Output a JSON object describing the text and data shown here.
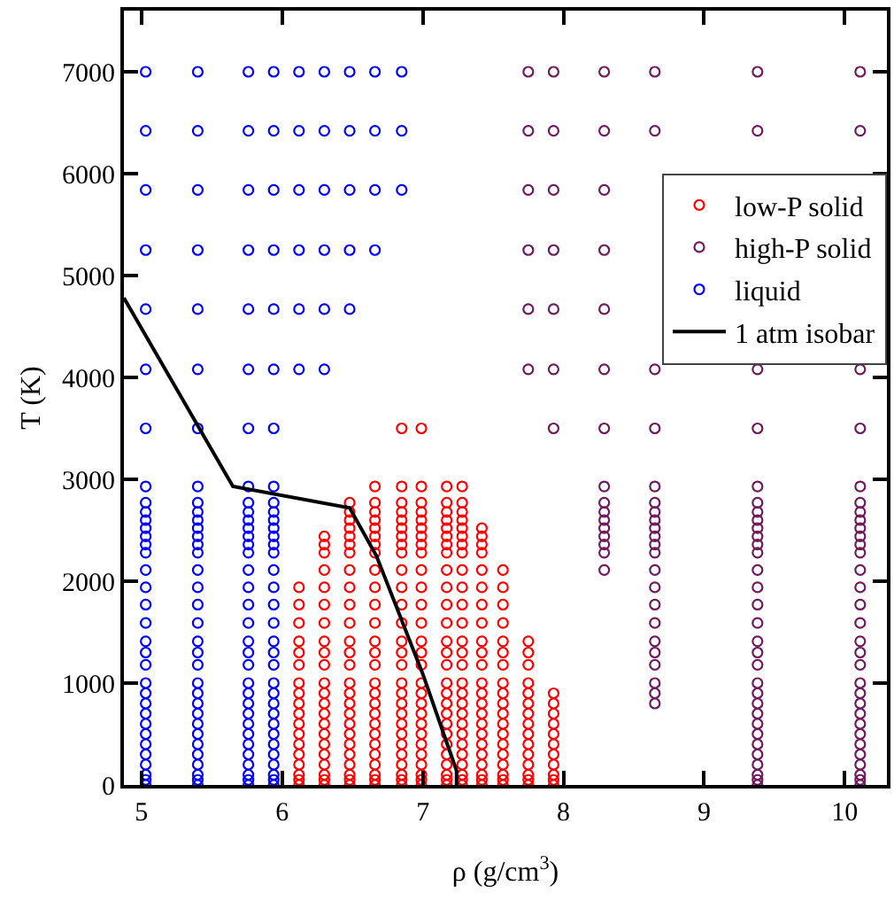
{
  "chart_data": {
    "type": "scatter",
    "xlabel": "ρ (g/cm$^{3}$)",
    "ylabel": "T (K)",
    "xlim": [
      4.875,
      10.3
    ],
    "ylim": [
      0,
      7600
    ],
    "xticks": [
      5,
      6,
      7,
      8,
      9,
      10
    ],
    "yticks": [
      0,
      1000,
      2000,
      3000,
      4000,
      5000,
      6000,
      7000
    ],
    "grid": false,
    "legend": "top right",
    "marker": "circle",
    "series": [
      {
        "name": "low-P solid",
        "color": "#ff0000",
        "x": [
          6.12,
          6.12,
          6.12,
          6.12,
          6.12,
          6.12,
          6.12,
          6.12,
          6.12,
          6.12,
          6.12,
          6.12,
          6.12,
          6.12,
          6.12,
          6.12,
          6.12,
          6.12,
          6.3,
          6.3,
          6.3,
          6.3,
          6.3,
          6.3,
          6.3,
          6.3,
          6.3,
          6.3,
          6.3,
          6.3,
          6.3,
          6.3,
          6.3,
          6.3,
          6.3,
          6.3,
          6.3,
          6.3,
          6.3,
          6.3,
          6.48,
          6.48,
          6.48,
          6.48,
          6.48,
          6.48,
          6.48,
          6.48,
          6.48,
          6.48,
          6.48,
          6.48,
          6.48,
          6.48,
          6.48,
          6.48,
          6.48,
          6.48,
          6.48,
          6.48,
          6.48,
          6.48,
          6.48,
          6.48,
          6.48,
          6.48,
          6.66,
          6.66,
          6.66,
          6.66,
          6.66,
          6.66,
          6.66,
          6.66,
          6.66,
          6.66,
          6.66,
          6.66,
          6.66,
          6.66,
          6.66,
          6.66,
          6.66,
          6.66,
          6.66,
          6.66,
          6.66,
          6.66,
          6.66,
          6.66,
          6.66,
          6.66,
          6.66,
          6.85,
          6.85,
          6.85,
          6.85,
          6.85,
          6.85,
          6.85,
          6.85,
          6.85,
          6.85,
          6.85,
          6.85,
          6.85,
          6.85,
          6.85,
          6.85,
          6.85,
          6.85,
          6.85,
          6.85,
          6.85,
          6.85,
          6.85,
          6.85,
          6.85,
          6.85,
          6.85,
          6.99,
          6.99,
          6.99,
          6.99,
          6.99,
          6.99,
          6.99,
          6.99,
          6.99,
          6.99,
          6.99,
          6.99,
          6.99,
          6.99,
          6.99,
          6.99,
          6.99,
          6.99,
          6.99,
          6.99,
          6.99,
          6.99,
          6.99,
          6.99,
          6.99,
          6.99,
          6.99,
          7.17,
          7.17,
          7.17,
          7.17,
          7.17,
          7.17,
          7.17,
          7.17,
          7.17,
          7.17,
          7.17,
          7.17,
          7.17,
          7.17,
          7.17,
          7.17,
          7.17,
          7.17,
          7.17,
          7.17,
          7.17,
          7.17,
          7.17,
          7.17,
          7.17,
          7.17,
          7.17,
          7.28,
          7.28,
          7.28,
          7.28,
          7.28,
          7.28,
          7.28,
          7.28,
          7.28,
          7.28,
          7.28,
          7.28,
          7.28,
          7.28,
          7.28,
          7.28,
          7.28,
          7.28,
          7.28,
          7.28,
          7.28,
          7.28,
          7.28,
          7.28,
          7.28,
          7.28,
          7.28,
          7.42,
          7.42,
          7.42,
          7.42,
          7.42,
          7.42,
          7.42,
          7.42,
          7.42,
          7.42,
          7.42,
          7.42,
          7.42,
          7.42,
          7.42,
          7.42,
          7.42,
          7.42,
          7.42,
          7.42,
          7.42,
          7.42,
          7.42,
          7.57,
          7.57,
          7.57,
          7.57,
          7.57,
          7.57,
          7.57,
          7.57,
          7.57,
          7.57,
          7.57,
          7.57,
          7.57,
          7.57,
          7.57,
          7.57,
          7.57,
          7.57,
          7.57,
          7.75,
          7.75,
          7.75,
          7.75,
          7.75,
          7.75,
          7.75,
          7.75,
          7.75,
          7.75,
          7.75,
          7.75,
          7.75,
          7.75,
          7.75,
          7.93,
          7.93,
          7.93,
          7.93,
          7.93,
          7.93,
          7.93,
          7.93,
          7.93,
          7.93,
          7.93,
          6.85,
          6.99
        ],
        "values": [
          0,
          50,
          100,
          200,
          300,
          400,
          500,
          600,
          700,
          800,
          900,
          1000,
          1180,
          1300,
          1410,
          1590,
          1770,
          1940,
          0,
          50,
          100,
          200,
          300,
          400,
          500,
          600,
          700,
          800,
          900,
          1000,
          1180,
          1300,
          1410,
          1590,
          1770,
          1940,
          2110,
          2280,
          2360,
          2440,
          0,
          50,
          100,
          200,
          300,
          400,
          500,
          600,
          700,
          800,
          900,
          1000,
          1180,
          1300,
          1410,
          1590,
          1770,
          1940,
          2110,
          2280,
          2360,
          2440,
          2520,
          2600,
          2680,
          2770,
          0,
          50,
          100,
          200,
          300,
          400,
          500,
          600,
          700,
          800,
          900,
          1000,
          1180,
          1300,
          1410,
          1590,
          1770,
          1940,
          2110,
          2280,
          2360,
          2440,
          2520,
          2600,
          2680,
          2770,
          2930,
          0,
          50,
          100,
          200,
          300,
          400,
          500,
          600,
          700,
          800,
          900,
          1000,
          1180,
          1300,
          1410,
          1590,
          1770,
          1940,
          2110,
          2280,
          2360,
          2440,
          2520,
          2600,
          2680,
          2770,
          2930,
          0,
          50,
          100,
          200,
          300,
          400,
          500,
          600,
          700,
          800,
          900,
          1000,
          1180,
          1300,
          1410,
          1590,
          1770,
          1940,
          2110,
          2280,
          2360,
          2440,
          2520,
          2600,
          2680,
          2770,
          2930,
          0,
          50,
          100,
          200,
          300,
          400,
          500,
          600,
          700,
          800,
          900,
          1000,
          1180,
          1300,
          1410,
          1590,
          1770,
          1940,
          2110,
          2280,
          2360,
          2440,
          2520,
          2600,
          2680,
          2770,
          2930,
          0,
          50,
          100,
          200,
          300,
          400,
          500,
          600,
          700,
          800,
          900,
          1000,
          1180,
          1300,
          1410,
          1590,
          1770,
          1940,
          2110,
          2280,
          2360,
          2440,
          2520,
          2600,
          2680,
          2770,
          2930,
          0,
          50,
          100,
          200,
          300,
          400,
          500,
          600,
          700,
          800,
          900,
          1000,
          1180,
          1300,
          1410,
          1590,
          1770,
          1940,
          2110,
          2280,
          2360,
          2440,
          2520,
          0,
          50,
          100,
          200,
          300,
          400,
          500,
          600,
          700,
          800,
          900,
          1000,
          1180,
          1300,
          1410,
          1590,
          1770,
          1940,
          2110,
          0,
          50,
          100,
          200,
          300,
          400,
          500,
          600,
          700,
          800,
          900,
          1000,
          1180,
          1300,
          1410,
          0,
          50,
          100,
          200,
          300,
          400,
          500,
          600,
          700,
          800,
          900,
          3500,
          3500
        ]
      },
      {
        "name": "high-P solid",
        "color": "#701a5f",
        "x": [
          7.75,
          7.75,
          7.75,
          7.75,
          7.75,
          7.75,
          7.93,
          7.93,
          7.93,
          7.93,
          7.93,
          7.93,
          7.93,
          8.29,
          8.29,
          8.29,
          8.29,
          8.29,
          8.29,
          8.29,
          8.29,
          8.29,
          8.29,
          8.29,
          8.29,
          8.29,
          8.29,
          8.29,
          8.29,
          8.65,
          8.65,
          8.65,
          8.65,
          8.65,
          8.65,
          8.65,
          8.65,
          8.65,
          8.65,
          8.65,
          8.65,
          8.65,
          8.65,
          8.65,
          8.65,
          8.65,
          8.65,
          8.65,
          8.65,
          8.65,
          8.65,
          9.38,
          9.38,
          9.38,
          9.38,
          9.38,
          9.38,
          9.38,
          9.38,
          9.38,
          9.38,
          9.38,
          9.38,
          9.38,
          9.38,
          9.38,
          9.38,
          9.38,
          9.38,
          9.38,
          9.38,
          9.38,
          9.38,
          9.38,
          9.38,
          9.38,
          9.38,
          9.38,
          9.38,
          9.38,
          9.38,
          9.38,
          10.11,
          10.11,
          10.11,
          10.11,
          10.11,
          10.11,
          10.11,
          10.11,
          10.11,
          10.11,
          10.11,
          10.11,
          10.11,
          10.11,
          10.11,
          10.11,
          10.11,
          10.11,
          10.11,
          10.11,
          10.11,
          10.11,
          10.11,
          10.11,
          10.11,
          10.11,
          10.11,
          10.11,
          10.11,
          10.11,
          10.11
        ],
        "values": [
          4080,
          4670,
          5250,
          5840,
          6420,
          7000,
          3500,
          4080,
          4670,
          5250,
          5840,
          6420,
          7000,
          3500,
          4080,
          4670,
          5250,
          5840,
          6420,
          7000,
          2110,
          2280,
          2360,
          2440,
          2520,
          2600,
          2680,
          2770,
          2930,
          3500,
          4080,
          6420,
          7000,
          800,
          900,
          1000,
          1180,
          1300,
          1410,
          1590,
          1770,
          1940,
          2110,
          2280,
          2360,
          2440,
          2520,
          2600,
          2680,
          2770,
          2930,
          3500,
          4080,
          6420,
          7000,
          0,
          50,
          100,
          200,
          300,
          400,
          500,
          600,
          700,
          800,
          900,
          1000,
          1180,
          1300,
          1410,
          1590,
          1770,
          1940,
          2110,
          2280,
          2360,
          2440,
          2520,
          2600,
          2680,
          2770,
          2930,
          3500,
          4080,
          6420,
          7000,
          0,
          50,
          100,
          200,
          300,
          400,
          500,
          600,
          700,
          800,
          900,
          1000,
          1180,
          1300,
          1410,
          1590,
          1770,
          1940,
          2110,
          2280,
          2360,
          2440,
          2520,
          2600,
          2680,
          2770,
          2930
        ]
      },
      {
        "name": "liquid",
        "color": "#0000ff",
        "x": [
          5.03,
          5.03,
          5.03,
          5.03,
          5.03,
          5.03,
          5.03,
          5.03,
          5.03,
          5.03,
          5.03,
          5.03,
          5.03,
          5.03,
          5.03,
          5.03,
          5.03,
          5.03,
          5.03,
          5.03,
          5.03,
          5.03,
          5.03,
          5.03,
          5.03,
          5.03,
          5.03,
          5.4,
          5.4,
          5.4,
          5.4,
          5.4,
          5.4,
          5.4,
          5.4,
          5.4,
          5.4,
          5.4,
          5.4,
          5.4,
          5.4,
          5.4,
          5.4,
          5.4,
          5.4,
          5.4,
          5.4,
          5.4,
          5.4,
          5.4,
          5.4,
          5.4,
          5.4,
          5.4,
          5.76,
          5.76,
          5.76,
          5.76,
          5.76,
          5.76,
          5.76,
          5.76,
          5.76,
          5.76,
          5.76,
          5.76,
          5.76,
          5.76,
          5.76,
          5.76,
          5.76,
          5.76,
          5.76,
          5.76,
          5.76,
          5.76,
          5.76,
          5.76,
          5.76,
          5.76,
          5.76,
          5.94,
          5.94,
          5.94,
          5.94,
          5.94,
          5.94,
          5.94,
          5.94,
          5.94,
          5.94,
          5.94,
          5.94,
          5.94,
          5.94,
          5.94,
          5.94,
          5.94,
          5.94,
          5.94,
          5.94,
          5.94,
          5.94,
          5.94,
          5.94,
          5.94,
          5.94,
          5.94,
          5.03,
          5.4,
          5.76,
          5.94,
          5.03,
          5.4,
          5.76,
          5.94,
          6.12,
          6.3,
          5.03,
          5.4,
          5.76,
          5.94,
          6.12,
          6.3,
          6.48,
          5.03,
          5.4,
          5.76,
          5.94,
          6.12,
          6.3,
          6.48,
          6.66,
          5.03,
          5.4,
          5.76,
          5.94,
          6.12,
          6.3,
          6.48,
          6.66,
          6.85,
          5.03,
          5.4,
          5.76,
          5.94,
          6.12,
          6.3,
          6.48,
          6.66,
          6.85,
          5.03,
          5.4,
          5.76,
          5.94,
          6.12,
          6.3,
          6.48,
          6.66,
          6.85
        ],
        "values": [
          0,
          50,
          100,
          200,
          300,
          400,
          500,
          600,
          700,
          800,
          900,
          1000,
          1180,
          1300,
          1410,
          1590,
          1770,
          1940,
          2110,
          2280,
          2360,
          2440,
          2520,
          2600,
          2680,
          2770,
          2930,
          0,
          50,
          100,
          200,
          300,
          400,
          500,
          600,
          700,
          800,
          900,
          1000,
          1180,
          1300,
          1410,
          1590,
          1770,
          1940,
          2110,
          2280,
          2360,
          2440,
          2520,
          2600,
          2680,
          2770,
          2930,
          0,
          50,
          100,
          200,
          300,
          400,
          500,
          600,
          700,
          800,
          900,
          1000,
          1180,
          1300,
          1410,
          1590,
          1770,
          1940,
          2110,
          2280,
          2360,
          2440,
          2520,
          2600,
          2680,
          2770,
          2930,
          0,
          50,
          100,
          200,
          300,
          400,
          500,
          600,
          700,
          800,
          900,
          1000,
          1180,
          1300,
          1410,
          1590,
          1770,
          1940,
          2110,
          2280,
          2360,
          2440,
          2520,
          2600,
          2680,
          2770,
          2930,
          3500,
          3500,
          3500,
          3500,
          4080,
          4080,
          4080,
          4080,
          4080,
          4080,
          4670,
          4670,
          4670,
          4670,
          4670,
          4670,
          4670,
          5250,
          5250,
          5250,
          5250,
          5250,
          5250,
          5250,
          5250,
          5840,
          5840,
          5840,
          5840,
          5840,
          5840,
          5840,
          5840,
          5840,
          6420,
          6420,
          6420,
          6420,
          6420,
          6420,
          6420,
          6420,
          6420,
          7000,
          7000,
          7000,
          7000,
          7000,
          7000,
          7000,
          7000,
          7000
        ]
      },
      {
        "name": "1 atm isobar",
        "type": "line",
        "marker": "none",
        "color": "#000000",
        "x": [
          4.875,
          5.65,
          6.48,
          6.67,
          7.0,
          7.24,
          7.24
        ],
        "values": [
          4780,
          2930,
          2720,
          2250,
          1090,
          140,
          0
        ]
      }
    ]
  }
}
